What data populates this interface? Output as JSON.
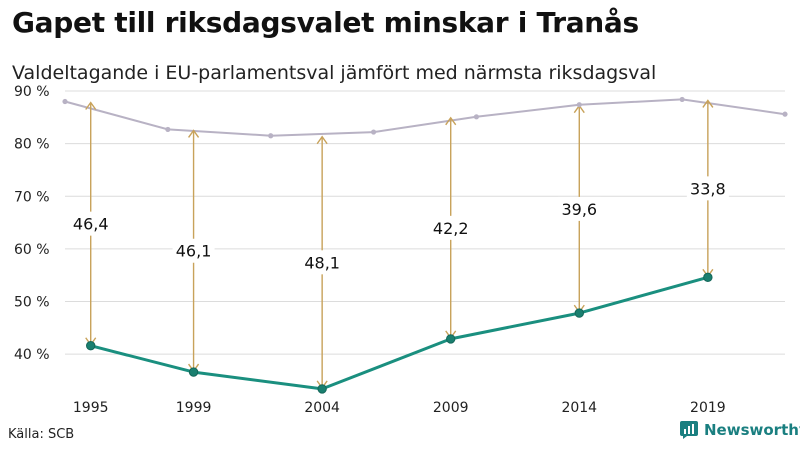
{
  "header": {
    "title": "Gapet till riksdagsvalet minskar i Tranås",
    "subtitle": "Valdeltagande i EU-parlamentsval jämfört med närmsta riksdagsval"
  },
  "footer": {
    "source": "Källa: SCB",
    "brand": "Newsworthy"
  },
  "chart_data": {
    "type": "line",
    "title": "Gapet till riksdagsvalet minskar i Tranås",
    "subtitle": "Valdeltagande i EU-parlamentsval jämfört med närmsta riksdagsval",
    "xlabel": "",
    "ylabel": "",
    "xlim": [
      1995,
      2022
    ],
    "ylim": [
      33,
      90
    ],
    "y_ticks": [
      40,
      50,
      60,
      70,
      80,
      90
    ],
    "y_tick_labels": [
      "40 %",
      "50 %",
      "60 %",
      "70 %",
      "80 %",
      "90 %"
    ],
    "x_ticks": [
      1995,
      1999,
      2004,
      2009,
      2014,
      2019
    ],
    "x_tick_labels": [
      "1995",
      "1999",
      "2004",
      "2009",
      "2014",
      "2019"
    ],
    "grid": true,
    "legend": "none",
    "series": [
      {
        "points": [
          {
            "x": 1994,
            "y": 88.0
          },
          {
            "x": 1998,
            "y": 82.7
          },
          {
            "x": 2002,
            "y": 81.5
          },
          {
            "x": 2006,
            "y": 82.2
          },
          {
            "x": 2010,
            "y": 85.1
          },
          {
            "x": 2014,
            "y": 87.4
          },
          {
            "x": 2018,
            "y": 88.4
          },
          {
            "x": 2022,
            "y": 85.6
          }
        ],
        "color": "#b8b2c4"
      },
      {
        "points": [
          {
            "x": 1995,
            "y": 41.6
          },
          {
            "x": 1999,
            "y": 36.6
          },
          {
            "x": 2004,
            "y": 33.4
          },
          {
            "x": 2009,
            "y": 42.9
          },
          {
            "x": 2014,
            "y": 47.8
          },
          {
            "x": 2019,
            "y": 54.6
          }
        ],
        "color": "#1a8f7f"
      }
    ],
    "gaps": [
      {
        "x": 1995,
        "from": 41.6,
        "to": 88.0,
        "label": "46,4"
      },
      {
        "x": 1999,
        "from": 36.6,
        "to": 82.7,
        "label": "46,1"
      },
      {
        "x": 2004,
        "from": 33.4,
        "to": 81.5,
        "label": "48,1"
      },
      {
        "x": 2009,
        "from": 42.9,
        "to": 85.1,
        "label": "42,2"
      },
      {
        "x": 2014,
        "from": 47.8,
        "to": 87.4,
        "label": "39,6"
      },
      {
        "x": 2019,
        "from": 54.6,
        "to": 88.4,
        "label": "33,8"
      }
    ],
    "gap_color": "#c8a25a"
  }
}
